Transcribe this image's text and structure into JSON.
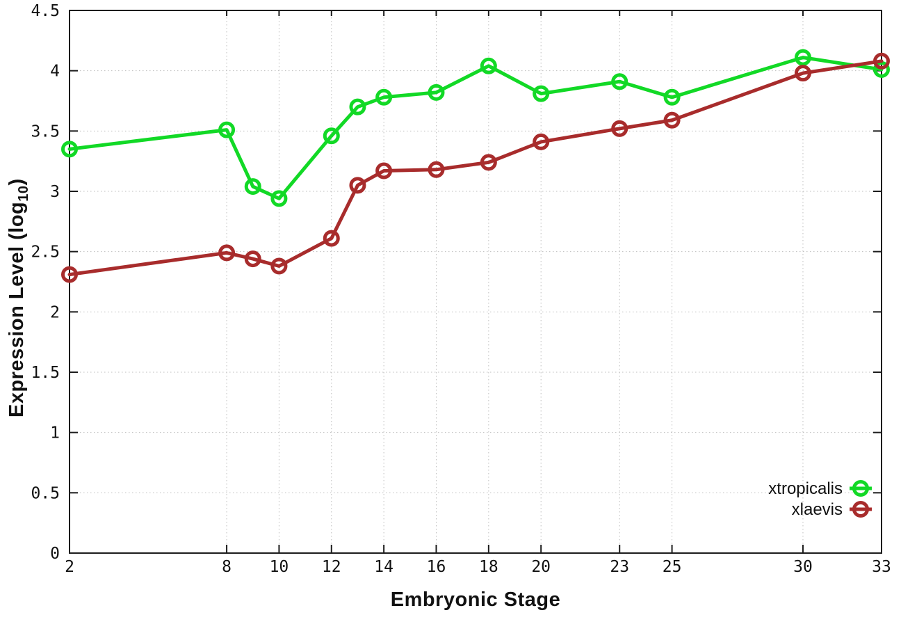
{
  "figure": {
    "background": "#ffffff",
    "border_color": "#1c1c1c",
    "grid_color": "#bdbdbd",
    "text_color": "#111111"
  },
  "axes": {
    "x_label": "Embryonic Stage",
    "y_label_main": "Expression Level (log",
    "y_label_sub": "10",
    "y_label_close": ")",
    "x_tick_labels": [
      "2",
      "8",
      "10",
      "12",
      "14",
      "16",
      "18",
      "20",
      "23",
      "25",
      "30",
      "33"
    ],
    "y_tick_labels": [
      "0",
      "0.5",
      "1",
      "1.5",
      "2",
      "2.5",
      "3",
      "3.5",
      "4",
      "4.5"
    ]
  },
  "legend": {
    "position": "bottom-right",
    "entries": [
      {
        "label": "xtropicalis",
        "color": "#12d926",
        "marker": "open-circle"
      },
      {
        "label": "xlaevis",
        "color": "#a82c2c",
        "marker": "open-circle"
      }
    ]
  },
  "chart_data": {
    "type": "line",
    "title": "",
    "xlabel": "Embryonic Stage",
    "ylabel": "Expression Level (log10)",
    "x": [
      2,
      8,
      9,
      10,
      12,
      13,
      14,
      16,
      18,
      20,
      23,
      25,
      30,
      33
    ],
    "x_ticks": [
      2,
      8,
      10,
      12,
      14,
      16,
      18,
      20,
      23,
      25,
      30,
      33
    ],
    "y_ticks": [
      0,
      0.5,
      1,
      1.5,
      2,
      2.5,
      3,
      3.5,
      4,
      4.5
    ],
    "xlim": [
      2,
      33
    ],
    "ylim": [
      0,
      4.5
    ],
    "grid": true,
    "legend_position": "bottom-right",
    "series": [
      {
        "name": "xtropicalis",
        "color": "#12d926",
        "marker": "open-circle",
        "values": [
          3.35,
          3.51,
          3.04,
          2.94,
          3.46,
          3.7,
          3.78,
          3.82,
          4.04,
          3.81,
          3.91,
          3.78,
          4.11,
          4.01
        ]
      },
      {
        "name": "xlaevis",
        "color": "#a82c2c",
        "marker": "open-circle",
        "values": [
          2.31,
          2.49,
          2.44,
          2.38,
          2.61,
          3.05,
          3.17,
          3.18,
          3.24,
          3.41,
          3.52,
          3.59,
          3.98,
          4.08
        ]
      }
    ]
  }
}
